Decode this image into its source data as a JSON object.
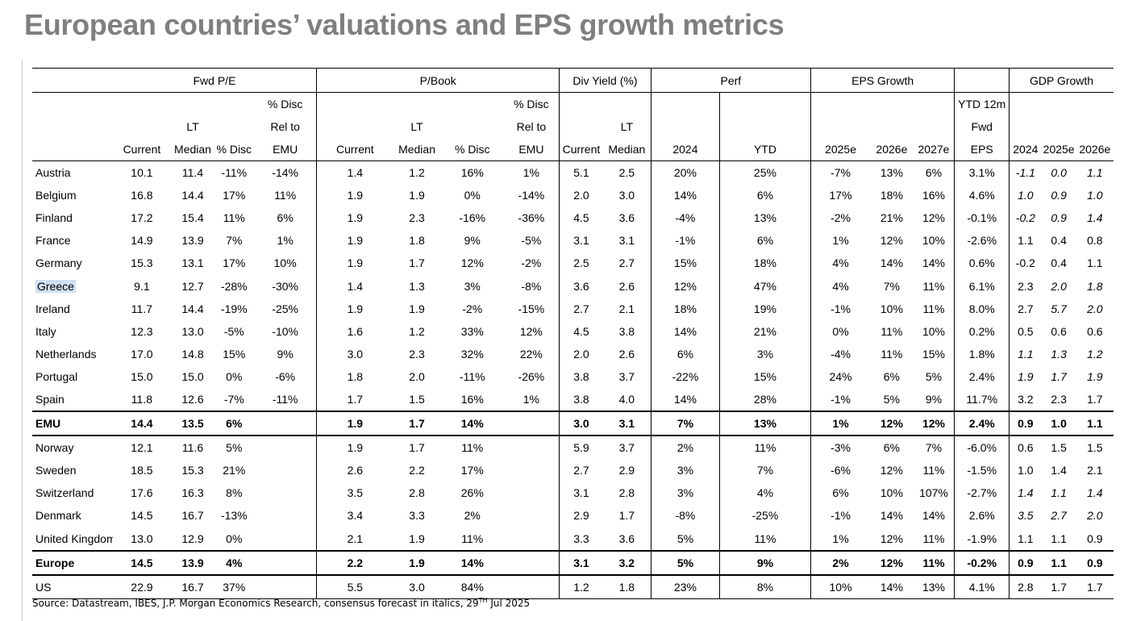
{
  "title": "European countries’ valuations and EPS growth metrics",
  "groups": {
    "fwd_pe": "Fwd P/E",
    "pbook": "P/Book",
    "div_yield": "Div Yield (%)",
    "perf": "Perf",
    "eps_growth": "EPS Growth",
    "gdp_growth": "GDP Growth"
  },
  "header_rows": {
    "h1": [
      "",
      "",
      "",
      "",
      "% Disc",
      "",
      "",
      "",
      "% Disc",
      "",
      "",
      "",
      "",
      "",
      "",
      "",
      "YTD 12m",
      "",
      "",
      ""
    ],
    "h2": [
      "",
      "",
      "LT",
      "",
      "Rel to",
      "",
      "LT",
      "",
      "Rel to",
      "",
      "LT",
      "",
      "",
      "",
      "",
      "",
      "Fwd",
      "",
      "",
      ""
    ],
    "h3": [
      "",
      "Current",
      "Median",
      "% Disc",
      "EMU",
      "Current",
      "Median",
      "% Disc",
      "EMU",
      "Current",
      "Median",
      "2024",
      "YTD",
      "2025e",
      "2026e",
      "2027e",
      "EPS",
      "2024",
      "2025e",
      "2026e"
    ]
  },
  "rows": [
    [
      "Austria",
      "10.1",
      "11.4",
      "-11%",
      "-14%",
      "1.4",
      "1.2",
      "16%",
      "1%",
      "5.1",
      "2.5",
      "20%",
      "25%",
      "-7%",
      "13%",
      "6%",
      "3.1%",
      "-1.1",
      "0.0",
      "1.1"
    ],
    [
      "Belgium",
      "16.8",
      "14.4",
      "17%",
      "11%",
      "1.9",
      "1.9",
      "0%",
      "-14%",
      "2.0",
      "3.0",
      "14%",
      "6%",
      "17%",
      "18%",
      "16%",
      "4.6%",
      "1.0",
      "0.9",
      "1.0"
    ],
    [
      "Finland",
      "17.2",
      "15.4",
      "11%",
      "6%",
      "1.9",
      "2.3",
      "-16%",
      "-36%",
      "4.5",
      "3.6",
      "-4%",
      "13%",
      "-2%",
      "21%",
      "12%",
      "-0.1%",
      "-0.2",
      "0.9",
      "1.4"
    ],
    [
      "France",
      "14.9",
      "13.9",
      "7%",
      "1%",
      "1.9",
      "1.8",
      "9%",
      "-5%",
      "3.1",
      "3.1",
      "-1%",
      "6%",
      "1%",
      "12%",
      "10%",
      "-2.6%",
      "1.1",
      "0.4",
      "0.8"
    ],
    [
      "Germany",
      "15.3",
      "13.1",
      "17%",
      "10%",
      "1.9",
      "1.7",
      "12%",
      "-2%",
      "2.5",
      "2.7",
      "15%",
      "18%",
      "4%",
      "14%",
      "14%",
      "0.6%",
      "-0.2",
      "0.4",
      "1.1"
    ],
    [
      "Greece",
      "9.1",
      "12.7",
      "-28%",
      "-30%",
      "1.4",
      "1.3",
      "3%",
      "-8%",
      "3.6",
      "2.6",
      "12%",
      "47%",
      "4%",
      "7%",
      "11%",
      "6.1%",
      "2.3",
      "2.0",
      "1.8"
    ],
    [
      "Ireland",
      "11.7",
      "14.4",
      "-19%",
      "-25%",
      "1.9",
      "1.9",
      "-2%",
      "-15%",
      "2.7",
      "2.1",
      "18%",
      "19%",
      "-1%",
      "10%",
      "11%",
      "8.0%",
      "2.7",
      "5.7",
      "2.0"
    ],
    [
      "Italy",
      "12.3",
      "13.0",
      "-5%",
      "-10%",
      "1.6",
      "1.2",
      "33%",
      "12%",
      "4.5",
      "3.8",
      "14%",
      "21%",
      "0%",
      "11%",
      "10%",
      "0.2%",
      "0.5",
      "0.6",
      "0.6"
    ],
    [
      "Netherlands",
      "17.0",
      "14.8",
      "15%",
      "9%",
      "3.0",
      "2.3",
      "32%",
      "22%",
      "2.0",
      "2.6",
      "6%",
      "3%",
      "-4%",
      "11%",
      "15%",
      "1.8%",
      "1.1",
      "1.3",
      "1.2"
    ],
    [
      "Portugal",
      "15.0",
      "15.0",
      "0%",
      "-6%",
      "1.8",
      "2.0",
      "-11%",
      "-26%",
      "3.8",
      "3.7",
      "-22%",
      "15%",
      "24%",
      "6%",
      "5%",
      "2.4%",
      "1.9",
      "1.7",
      "1.9"
    ],
    [
      "Spain",
      "11.8",
      "12.6",
      "-7%",
      "-11%",
      "1.7",
      "1.5",
      "16%",
      "1%",
      "3.8",
      "4.0",
      "14%",
      "28%",
      "-1%",
      "5%",
      "9%",
      "11.7%",
      "3.2",
      "2.3",
      "1.7"
    ],
    [
      "EMU",
      "14.4",
      "13.5",
      "6%",
      "",
      "1.9",
      "1.7",
      "14%",
      "",
      "3.0",
      "3.1",
      "7%",
      "13%",
      "1%",
      "12%",
      "12%",
      "2.4%",
      "0.9",
      "1.0",
      "1.1"
    ],
    [
      "Norway",
      "12.1",
      "11.6",
      "5%",
      "",
      "1.9",
      "1.7",
      "11%",
      "",
      "5.9",
      "3.7",
      "2%",
      "11%",
      "-3%",
      "6%",
      "7%",
      "-6.0%",
      "0.6",
      "1.5",
      "1.5"
    ],
    [
      "Sweden",
      "18.5",
      "15.3",
      "21%",
      "",
      "2.6",
      "2.2",
      "17%",
      "",
      "2.7",
      "2.9",
      "3%",
      "7%",
      "-6%",
      "12%",
      "11%",
      "-1.5%",
      "1.0",
      "1.4",
      "2.1"
    ],
    [
      "Switzerland",
      "17.6",
      "16.3",
      "8%",
      "",
      "3.5",
      "2.8",
      "26%",
      "",
      "3.1",
      "2.8",
      "3%",
      "4%",
      "6%",
      "10%",
      "107%",
      "-2.7%",
      "1.4",
      "1.1",
      "1.4"
    ],
    [
      "Denmark",
      "14.5",
      "16.7",
      "-13%",
      "",
      "3.4",
      "3.3",
      "2%",
      "",
      "2.9",
      "1.7",
      "-8%",
      "-25%",
      "-1%",
      "14%",
      "14%",
      "2.6%",
      "3.5",
      "2.7",
      "2.0"
    ],
    [
      "United Kingdom",
      "13.0",
      "12.9",
      "0%",
      "",
      "2.1",
      "1.9",
      "11%",
      "",
      "3.3",
      "3.6",
      "5%",
      "11%",
      "1%",
      "12%",
      "11%",
      "-1.9%",
      "1.1",
      "1.1",
      "0.9"
    ],
    [
      "Europe",
      "14.5",
      "13.9",
      "4%",
      "",
      "2.2",
      "1.9",
      "14%",
      "",
      "3.1",
      "3.2",
      "5%",
      "9%",
      "2%",
      "12%",
      "11%",
      "-0.2%",
      "0.9",
      "1.1",
      "0.9"
    ],
    [
      "US",
      "22.9",
      "16.7",
      "37%",
      "",
      "5.5",
      "3.0",
      "84%",
      "",
      "1.2",
      "1.8",
      "23%",
      "8%",
      "10%",
      "14%",
      "13%",
      "4.1%",
      "2.8",
      "1.7",
      "1.7"
    ]
  ],
  "row_styles": [
    "",
    "",
    "",
    "",
    "",
    "highlight",
    "",
    "",
    "",
    "",
    "",
    "aggregate",
    "",
    "",
    "",
    "",
    "",
    "aggregate",
    "last"
  ],
  "italic_gdp": [
    [
      true,
      true,
      true
    ],
    [
      true,
      true,
      true
    ],
    [
      true,
      true,
      true
    ],
    [
      false,
      false,
      false
    ],
    [
      false,
      false,
      false
    ],
    [
      false,
      true,
      true
    ],
    [
      false,
      true,
      true
    ],
    [
      false,
      false,
      false
    ],
    [
      true,
      true,
      true
    ],
    [
      true,
      true,
      true
    ],
    [
      false,
      false,
      false
    ],
    [
      false,
      false,
      false
    ],
    [
      false,
      false,
      false
    ],
    [
      false,
      false,
      false
    ],
    [
      true,
      true,
      true
    ],
    [
      true,
      true,
      true
    ],
    [
      false,
      false,
      false
    ],
    [
      false,
      false,
      false
    ],
    [
      false,
      false,
      false
    ]
  ],
  "source_note": {
    "text": "Source: Datastream, IBES, J.P. Morgan Economics Research, consensus forecast in italics, 29",
    "superscript": "TH",
    "suffix": " Jul 2025"
  }
}
